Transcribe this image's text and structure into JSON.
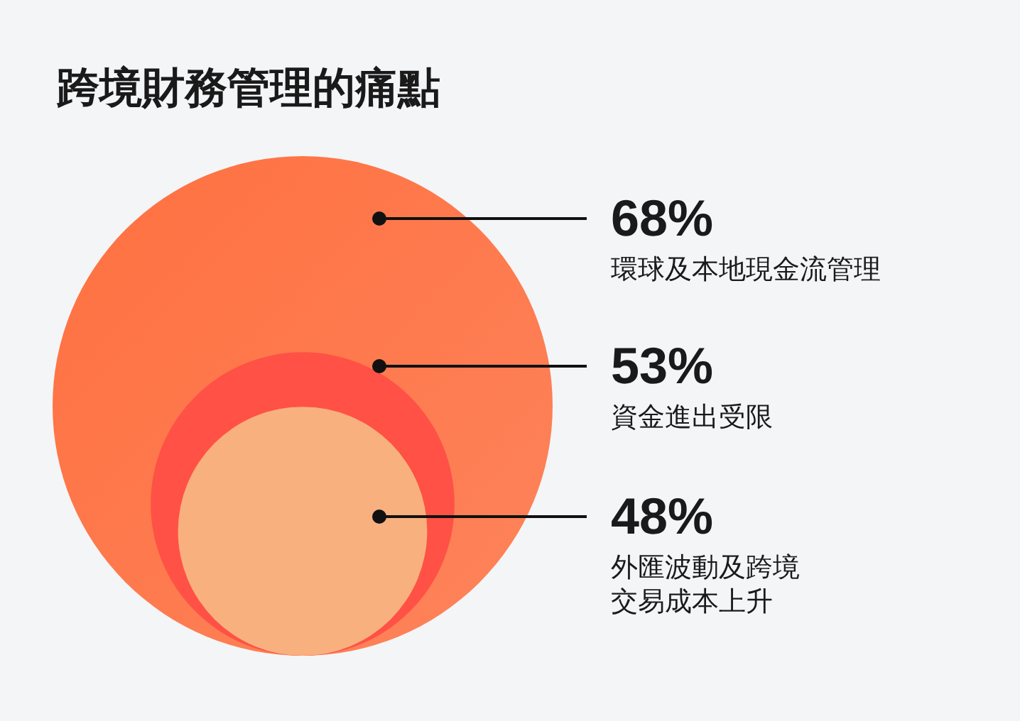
{
  "chart_data": {
    "type": "other",
    "title": "跨境財務管理的痛點",
    "categories": [
      "環球及本地現金流管理",
      "資金進出受限",
      "外匯波動及跨境交易成本上升"
    ],
    "values": [
      68,
      53,
      48
    ],
    "value_labels": [
      "68%",
      "53%",
      "48%"
    ],
    "colors": [
      "#ff7040",
      "#ff5145",
      "#f8b07e"
    ]
  }
}
